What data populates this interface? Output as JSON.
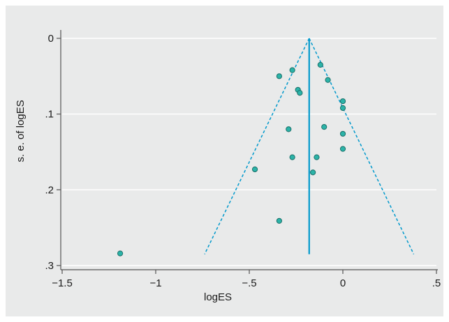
{
  "chart_data": {
    "type": "scatter",
    "title": "",
    "xlabel": "logES",
    "ylabel": "s. e. of logES",
    "xlim": [
      -1.5,
      0.5
    ],
    "ylim": [
      0,
      0.3
    ],
    "y_reversed": true,
    "grid": "horizontal",
    "x_ticks": [
      {
        "value": -1.5,
        "label": "−1.5"
      },
      {
        "value": -1.0,
        "label": "−1"
      },
      {
        "value": -0.5,
        "label": "−.5"
      },
      {
        "value": 0.0,
        "label": "0"
      },
      {
        "value": 0.5,
        "label": ".5"
      }
    ],
    "y_ticks": [
      {
        "value": 0.0,
        "label": "0"
      },
      {
        "value": 0.1,
        "label": ".1"
      },
      {
        "value": 0.2,
        "label": ".2"
      },
      {
        "value": 0.3,
        "label": ".3"
      }
    ],
    "pooled_estimate": -0.18,
    "funnel_se_max": 0.285,
    "points": [
      {
        "x": -0.12,
        "y": 0.035
      },
      {
        "x": -0.27,
        "y": 0.042
      },
      {
        "x": -0.34,
        "y": 0.05
      },
      {
        "x": -0.08,
        "y": 0.055
      },
      {
        "x": -0.24,
        "y": 0.068
      },
      {
        "x": -0.23,
        "y": 0.072
      },
      {
        "x": 0.0,
        "y": 0.083
      },
      {
        "x": 0.0,
        "y": 0.092
      },
      {
        "x": -0.1,
        "y": 0.117
      },
      {
        "x": -0.29,
        "y": 0.12
      },
      {
        "x": 0.0,
        "y": 0.126
      },
      {
        "x": 0.0,
        "y": 0.146
      },
      {
        "x": -0.27,
        "y": 0.157
      },
      {
        "x": -0.14,
        "y": 0.157
      },
      {
        "x": -0.47,
        "y": 0.173
      },
      {
        "x": -0.16,
        "y": 0.177
      },
      {
        "x": -0.34,
        "y": 0.241
      },
      {
        "x": -1.19,
        "y": 0.284
      }
    ],
    "colors": {
      "marker_fill": "#2bb3a8",
      "marker_stroke": "#1a6f68",
      "line": "#0099cc",
      "grid": "#ffffff",
      "axis": "#555555",
      "background": "#e9eaea"
    }
  }
}
